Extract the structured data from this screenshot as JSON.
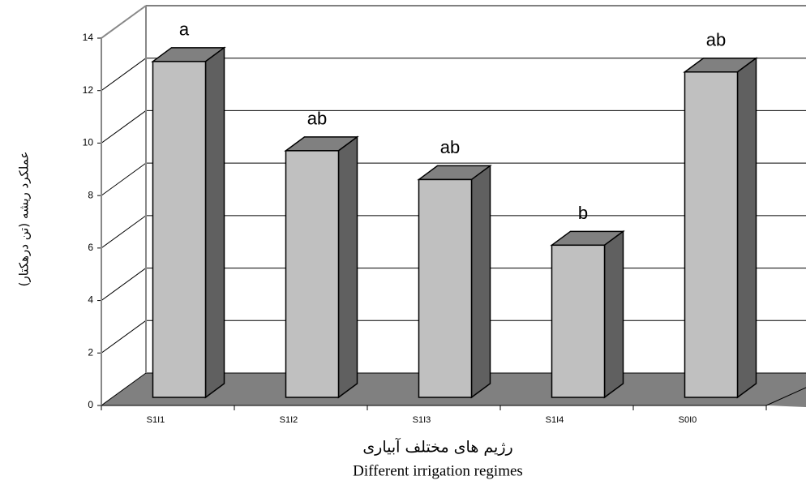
{
  "chart_data": {
    "type": "bar3d",
    "categories": [
      "S1I1",
      "S1I2",
      "S1I3",
      "S1I4",
      "S0I0"
    ],
    "values": [
      12.8,
      9.4,
      8.3,
      5.8,
      12.4
    ],
    "letters": [
      "a",
      "ab",
      "ab",
      "b",
      "ab"
    ],
    "ylabel": "عملکرد ریشه (تن درهکتار)",
    "xlabel": "رژیم های مختلف آبیاری",
    "xlabel_en": "Different irrigation regimes",
    "ylim": [
      0,
      14
    ],
    "yticks": [
      0,
      2,
      4,
      6,
      8,
      10,
      12,
      14
    ],
    "grid": true,
    "color": "#c0c0c0",
    "side_color": "#606060",
    "top_color": "#808080",
    "floor_color": "#808080"
  }
}
